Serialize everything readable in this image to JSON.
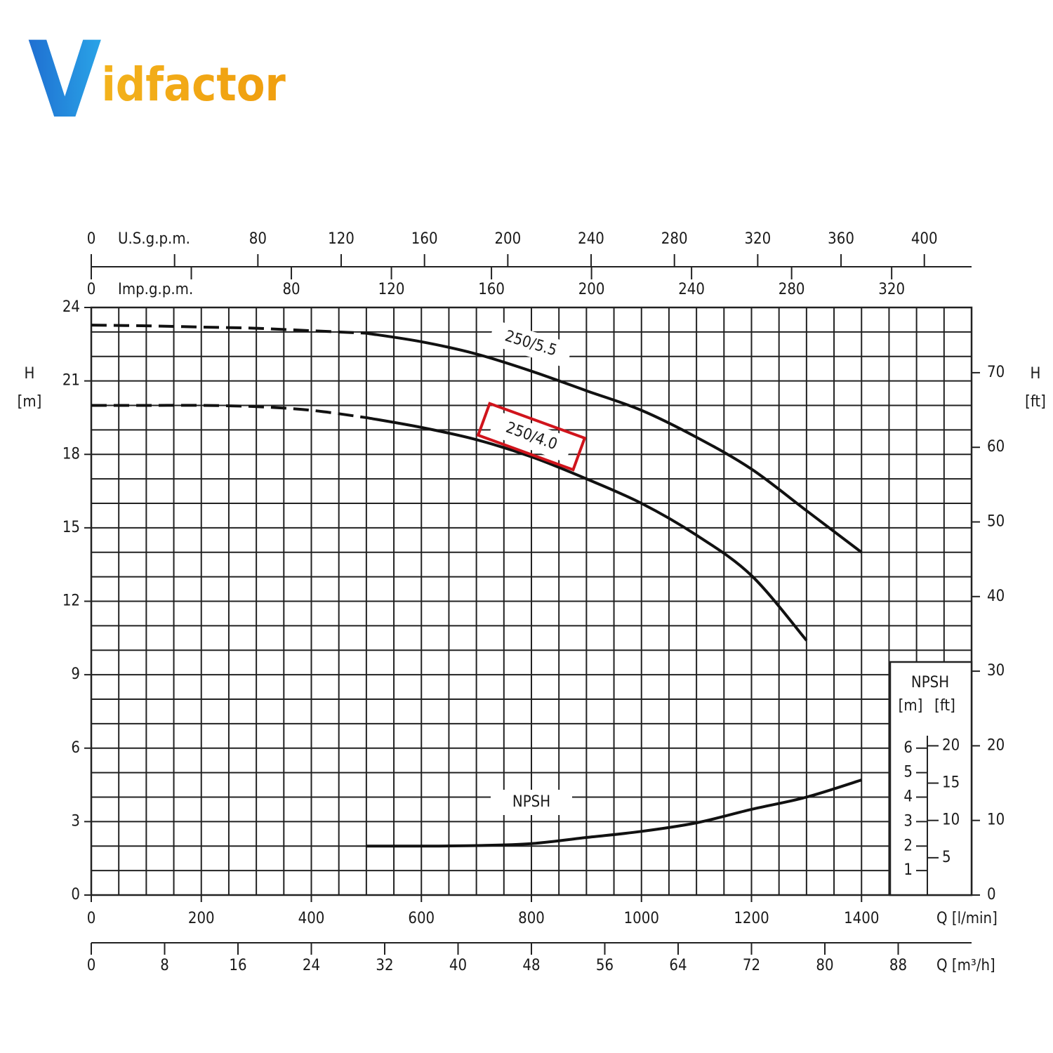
{
  "logo": "Vidfactor",
  "chart_data": {
    "type": "line",
    "x": [
      0,
      100,
      200,
      300,
      400,
      500,
      600,
      700,
      800,
      900,
      1000,
      1100,
      1200,
      1300,
      1400
    ],
    "series": [
      {
        "name": "250/5.5",
        "color": "#111111",
        "dashed_until": 500,
        "values": [
          23.28,
          23.25,
          23.2,
          23.15,
          23.05,
          22.95,
          22.6,
          22.1,
          21.4,
          20.6,
          19.8,
          18.7,
          17.4,
          15.7,
          14.0
        ]
      },
      {
        "name": "250/4.0",
        "color": "#111111",
        "dashed_until": 500,
        "values": [
          20.0,
          20.0,
          20.0,
          19.95,
          19.8,
          19.5,
          19.1,
          18.6,
          17.9,
          17.0,
          16.0,
          14.7,
          13.05,
          10.4,
          null
        ]
      },
      {
        "name": "NPSH",
        "color": "#111111",
        "values": [
          null,
          null,
          null,
          null,
          null,
          2.0,
          2.0,
          2.02,
          2.1,
          2.35,
          2.6,
          2.95,
          3.5,
          4.0,
          4.7
        ]
      }
    ],
    "highlighted_series": 1,
    "highlight_color": "#d0141c",
    "xlabel": "Q [l/min]",
    "xlim": [
      0,
      1600
    ],
    "xticks": [
      0,
      200,
      400,
      600,
      800,
      1000,
      1200,
      1400
    ],
    "minor_xticks": [
      0,
      50,
      100,
      150,
      200,
      250,
      300,
      350,
      400,
      450,
      500,
      550,
      600,
      650,
      700,
      750,
      800,
      850,
      900,
      950,
      1000,
      1050,
      1100,
      1150,
      1200,
      1250,
      1300,
      1350,
      1400,
      1450,
      1500,
      1550,
      1600
    ],
    "ylabel": "H",
    "ylabel_unit": "[m]",
    "ylim": [
      0,
      24
    ],
    "yticks": [
      0,
      3,
      6,
      9,
      12,
      15,
      18,
      21,
      24
    ],
    "minor_yticks": [
      0,
      1,
      2,
      3,
      4,
      5,
      6,
      7,
      8,
      9,
      10,
      11,
      12,
      13,
      14,
      15,
      16,
      17,
      18,
      19,
      20,
      21,
      22,
      23,
      24
    ],
    "y2label": "H",
    "y2label_unit": "[ft]",
    "y2lim": [
      0,
      78.74
    ],
    "y2ticks": [
      0,
      10,
      20,
      30,
      40,
      50,
      60,
      70
    ],
    "grid": true,
    "extra_x_axes": [
      {
        "label": "U.S.g.p.m.",
        "side": "top-up",
        "xlim": [
          0,
          422.68
        ],
        "xticks": [
          0,
          {
            "value": 40,
            "label": null
          },
          80,
          120,
          160,
          200,
          240,
          280,
          320,
          360,
          400
        ]
      },
      {
        "label": "Imp.g.p.m.",
        "side": "top-down",
        "xlim": [
          0,
          351.95
        ],
        "xticks": [
          0,
          {
            "value": 40,
            "label": null
          },
          80,
          120,
          160,
          200,
          240,
          280,
          320
        ]
      },
      {
        "label": "Q [m³/h]",
        "side": "bottom",
        "xlim": [
          0,
          96
        ],
        "xticks": [
          0,
          8,
          16,
          24,
          32,
          40,
          48,
          56,
          64,
          72,
          80,
          88
        ]
      }
    ],
    "npsh_scale": {
      "title": "NPSH",
      "units": [
        "[m]",
        "[ft]"
      ],
      "mticks": [
        1,
        2,
        3,
        4,
        5,
        6
      ],
      "ftticks": [
        5,
        10,
        15,
        20
      ]
    }
  }
}
